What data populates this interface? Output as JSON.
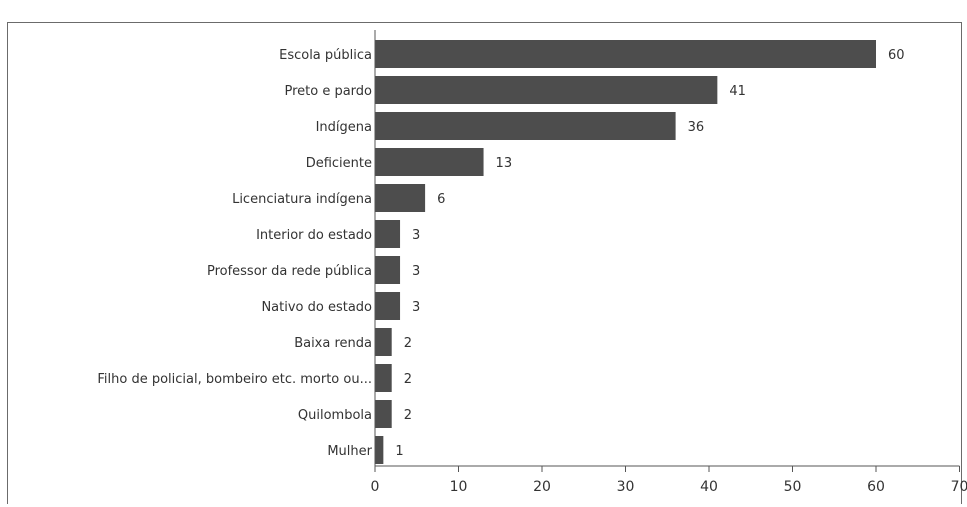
{
  "chart_data": {
    "type": "bar",
    "orientation": "horizontal",
    "categories": [
      "Escola pública",
      "Preto e pardo",
      "Indígena",
      "Deficiente",
      "Licenciatura indígena",
      "Interior do estado",
      "Professor da rede pública",
      "Nativo do estado",
      "Baixa renda",
      "Filho de policial, bombeiro etc. morto ou...",
      "Quilombola",
      "Mulher"
    ],
    "values": [
      60,
      41,
      36,
      13,
      6,
      3,
      3,
      3,
      2,
      2,
      2,
      1
    ],
    "value_labels": [
      "60",
      "41",
      "36",
      "13",
      "6",
      "3",
      "3",
      "3",
      "2",
      "2",
      "2",
      "1"
    ],
    "xlim": [
      0,
      70
    ],
    "xticks": [
      "0",
      "10",
      "20",
      "30",
      "40",
      "50",
      "60",
      "70"
    ],
    "title": "",
    "xlabel": "",
    "ylabel": "",
    "grid": false,
    "legend": "none",
    "bar_color": "#4d4d4d"
  }
}
